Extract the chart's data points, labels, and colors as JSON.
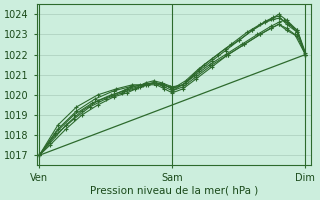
{
  "bg_color": "#cceedd",
  "grid_color": "#aaccbb",
  "line_color": "#2d6a2d",
  "xlabel": "Pression niveau de la mer( hPa )",
  "xlabel_fontsize": 7.5,
  "yticks": [
    1017,
    1018,
    1019,
    1020,
    1021,
    1022,
    1023,
    1024
  ],
  "ylim": [
    1016.5,
    1024.5
  ],
  "xtick_labels": [
    "Ven",
    "Sam",
    "Dim"
  ],
  "xtick_positions": [
    0.0,
    0.5,
    1.0
  ],
  "xlim": [
    -0.01,
    1.02
  ],
  "vlines": [
    0.0,
    0.5,
    1.0
  ],
  "series": [
    {
      "x": [
        0.0,
        0.04,
        0.1,
        0.16,
        0.22,
        0.28,
        0.33,
        0.38,
        0.43,
        0.47,
        0.5,
        0.55,
        0.6,
        0.65,
        0.7,
        0.75,
        0.8,
        0.85,
        0.88,
        0.9,
        0.93,
        0.97,
        1.0
      ],
      "y": [
        1017.0,
        1017.5,
        1018.3,
        1019.0,
        1019.5,
        1019.9,
        1020.1,
        1020.4,
        1020.6,
        1020.5,
        1020.3,
        1020.7,
        1021.3,
        1021.8,
        1022.3,
        1022.7,
        1023.2,
        1023.6,
        1023.75,
        1023.8,
        1023.6,
        1023.2,
        1022.0
      ]
    },
    {
      "x": [
        0.0,
        0.04,
        0.1,
        0.16,
        0.22,
        0.28,
        0.33,
        0.38,
        0.43,
        0.47,
        0.5,
        0.55,
        0.6,
        0.65,
        0.7,
        0.75,
        0.8,
        0.85,
        0.88,
        0.9,
        0.93,
        0.97,
        1.0
      ],
      "y": [
        1017.0,
        1017.6,
        1018.5,
        1019.2,
        1019.7,
        1020.0,
        1020.3,
        1020.5,
        1020.6,
        1020.4,
        1020.2,
        1020.6,
        1021.2,
        1021.7,
        1022.2,
        1022.7,
        1023.2,
        1023.65,
        1023.85,
        1023.9,
        1023.5,
        1023.1,
        1022.0
      ]
    },
    {
      "x": [
        0.0,
        0.06,
        0.13,
        0.19,
        0.25,
        0.31,
        0.36,
        0.41,
        0.44,
        0.47,
        0.5,
        0.54,
        0.58,
        0.62,
        0.67,
        0.72,
        0.78,
        0.83,
        0.87,
        0.9,
        0.93,
        0.97,
        1.0
      ],
      "y": [
        1017.0,
        1018.0,
        1018.8,
        1019.4,
        1019.8,
        1020.1,
        1020.3,
        1020.5,
        1020.6,
        1020.5,
        1020.3,
        1020.5,
        1021.0,
        1021.5,
        1022.0,
        1022.5,
        1023.1,
        1023.5,
        1023.75,
        1024.0,
        1023.7,
        1023.2,
        1022.1
      ]
    },
    {
      "x": [
        0.0,
        0.06,
        0.13,
        0.2,
        0.27,
        0.32,
        0.37,
        0.4,
        0.43,
        0.46,
        0.5,
        0.54,
        0.59,
        0.64,
        0.7,
        0.76,
        0.82,
        0.87,
        0.9,
        0.92,
        0.94,
        0.97,
        1.0
      ],
      "y": [
        1017.0,
        1018.1,
        1019.0,
        1019.6,
        1020.0,
        1020.2,
        1020.4,
        1020.6,
        1020.7,
        1020.6,
        1020.4,
        1020.5,
        1021.0,
        1021.5,
        1022.0,
        1022.5,
        1023.0,
        1023.4,
        1023.6,
        1023.7,
        1023.5,
        1023.1,
        1022.0
      ]
    },
    {
      "x": [
        0.0,
        0.07,
        0.14,
        0.21,
        0.28,
        0.34,
        0.39,
        0.43,
        0.46,
        0.49,
        0.5,
        0.54,
        0.59,
        0.65,
        0.71,
        0.77,
        0.83,
        0.87,
        0.9,
        0.93,
        0.96,
        1.0
      ],
      "y": [
        1017.0,
        1018.3,
        1019.2,
        1019.8,
        1020.2,
        1020.4,
        1020.5,
        1020.6,
        1020.5,
        1020.4,
        1020.2,
        1020.4,
        1020.9,
        1021.5,
        1022.0,
        1022.5,
        1023.0,
        1023.3,
        1023.5,
        1023.3,
        1023.0,
        1022.0
      ]
    },
    {
      "x": [
        0.0,
        0.07,
        0.14,
        0.22,
        0.29,
        0.35,
        0.4,
        0.44,
        0.47,
        0.5,
        0.54,
        0.59,
        0.65,
        0.71,
        0.77,
        0.83,
        0.87,
        0.9,
        0.93,
        0.97,
        1.0
      ],
      "y": [
        1017.0,
        1018.5,
        1019.4,
        1020.0,
        1020.3,
        1020.5,
        1020.5,
        1020.5,
        1020.3,
        1020.1,
        1020.3,
        1020.8,
        1021.4,
        1022.0,
        1022.5,
        1023.0,
        1023.3,
        1023.5,
        1023.2,
        1022.9,
        1022.0
      ]
    }
  ],
  "trend_line": {
    "x": [
      0.0,
      1.0
    ],
    "y": [
      1017.0,
      1022.0
    ]
  }
}
